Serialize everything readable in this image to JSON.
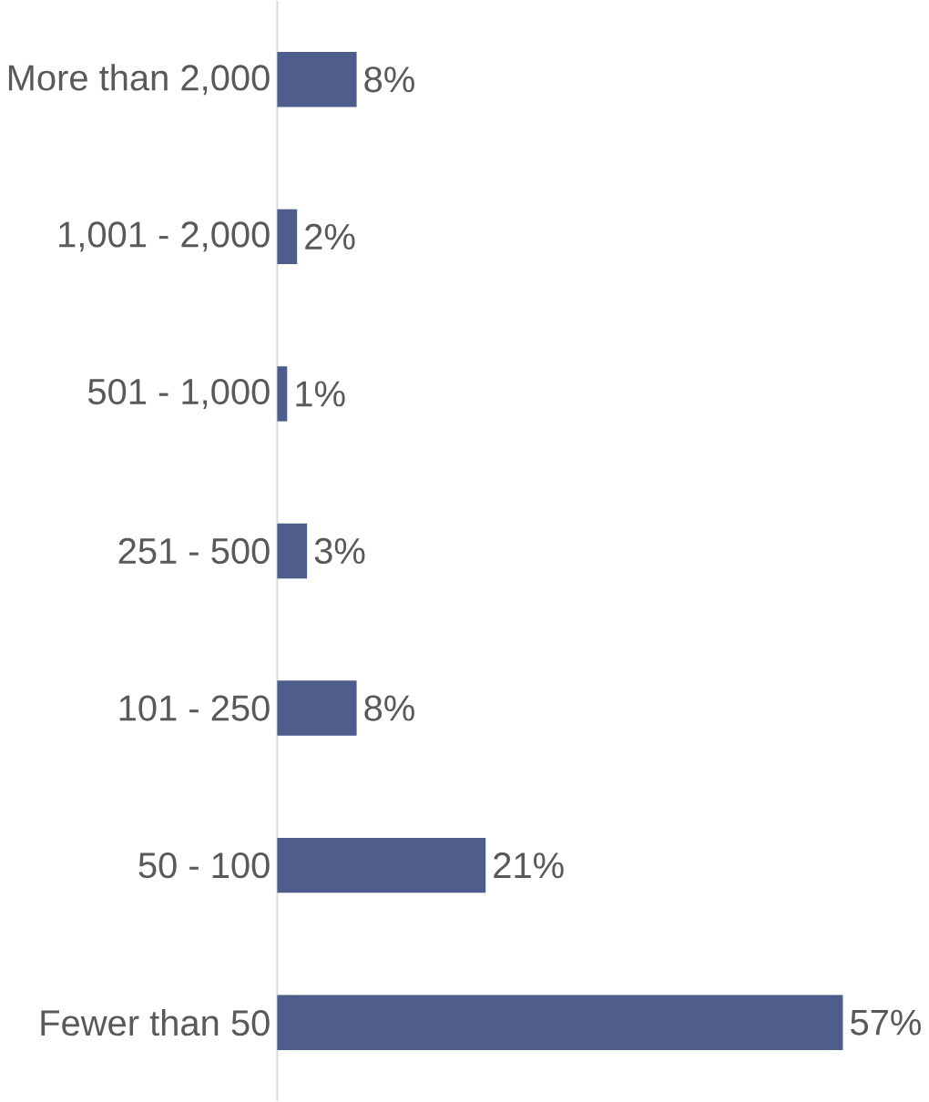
{
  "chart_data": {
    "type": "bar",
    "orientation": "horizontal",
    "categories": [
      "More than 2,000",
      "1,001 - 2,000",
      "501 - 1,000",
      "251 - 500",
      "101 - 250",
      "50 - 100",
      "Fewer than 50"
    ],
    "values": [
      8,
      2,
      1,
      3,
      8,
      21,
      57
    ],
    "value_labels": [
      "8%",
      "2%",
      "1%",
      "3%",
      "8%",
      "21%",
      "57%"
    ],
    "color": "#4e5d8c"
  }
}
